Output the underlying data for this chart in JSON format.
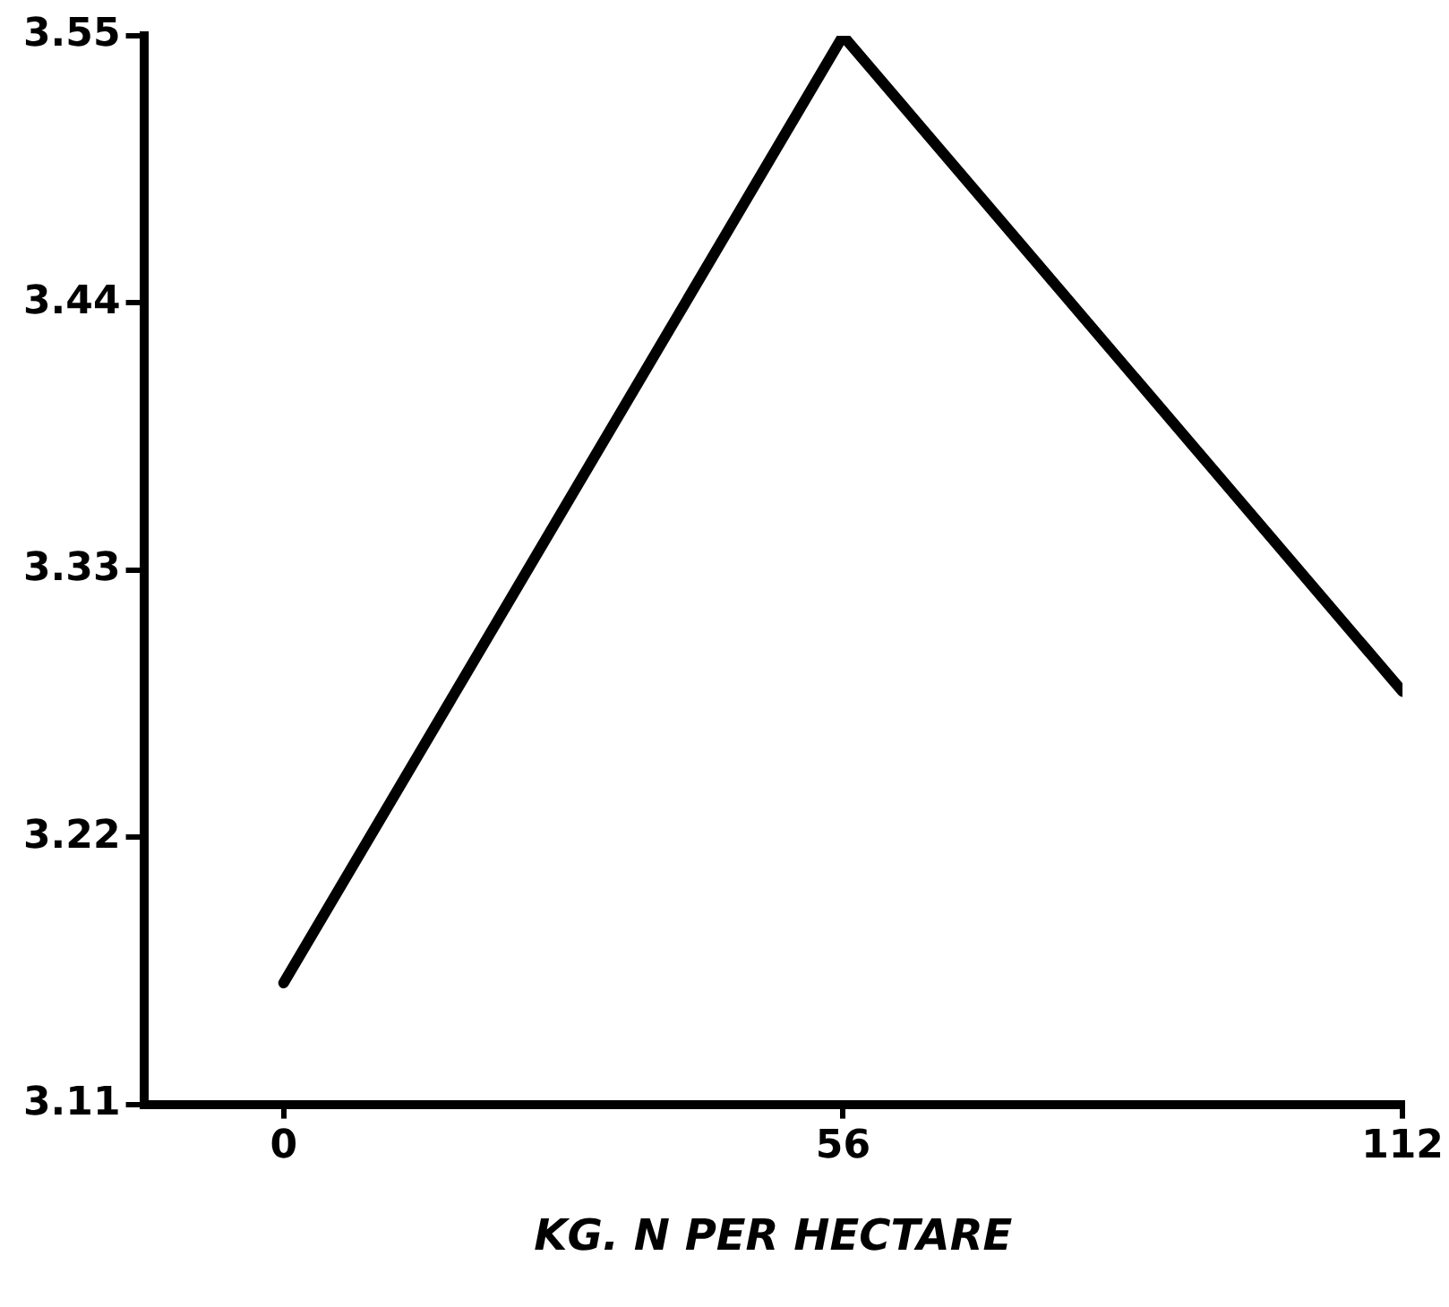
{
  "chart_data": {
    "type": "line",
    "xlabel": "KG. N PER HECTARE",
    "x": [
      0,
      56,
      112
    ],
    "series": [
      {
        "color": "#000000",
        "values": [
          3.16,
          3.55,
          3.28
        ]
      }
    ],
    "xlim": [
      -14,
      112
    ],
    "xticks": [
      0,
      56,
      112
    ],
    "ylim": [
      3.11,
      3.55
    ],
    "yticks": [
      3.11,
      3.22,
      3.33,
      3.44,
      3.55
    ],
    "grid": false,
    "legend": false,
    "marker": "none",
    "line_style": "solid"
  }
}
